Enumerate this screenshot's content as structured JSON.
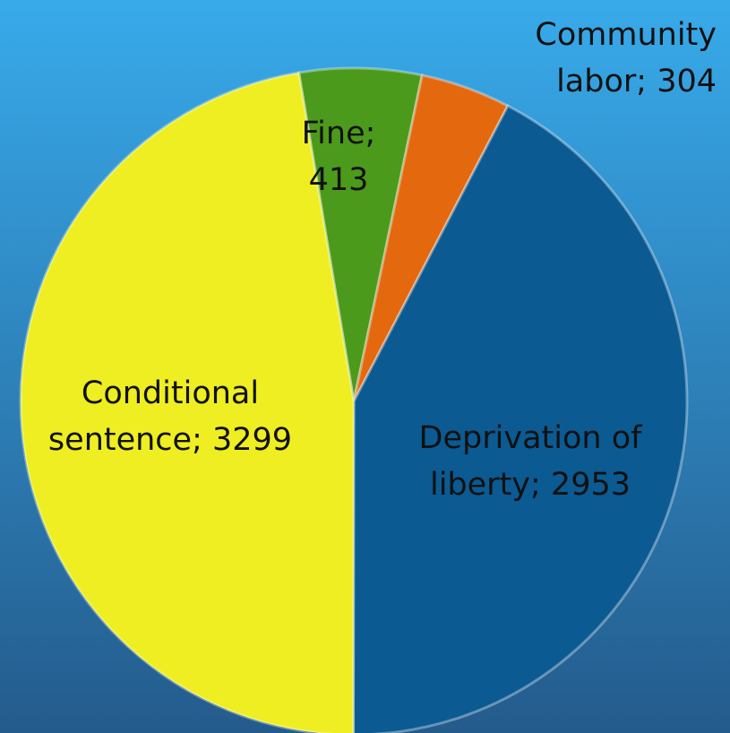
{
  "chart_data": {
    "type": "pie",
    "values": [
      413,
      304,
      2953,
      3299
    ],
    "value_labels": [
      [
        "Fine;",
        "413"
      ],
      [
        "Community",
        "labor; 304"
      ],
      [
        "Deprivation of",
        "liberty; 2953"
      ],
      [
        "Conditional",
        "sentence; 3299"
      ]
    ],
    "colors": [
      "#4c9a1c",
      "#e4680e",
      "#0b5a92",
      "#eeee22"
    ]
  }
}
